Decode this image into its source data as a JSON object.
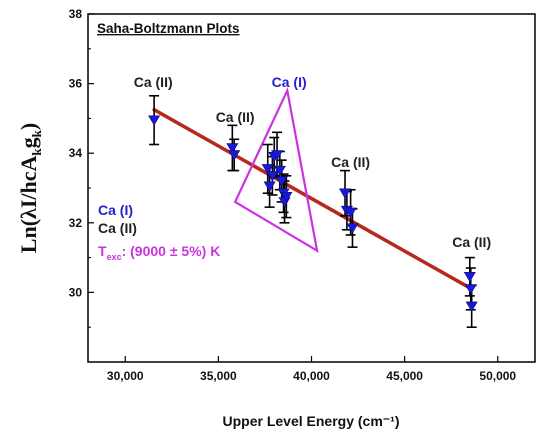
{
  "chart_data": {
    "type": "scatter",
    "title": "Saha-Boltzmann Plots",
    "xlabel": "Upper Level Energy (cm⁻¹)",
    "ylabel_parts": {
      "a": "Ln(λI/hcA",
      "b": "k",
      "c": "g",
      "d": "k",
      "e": ")"
    },
    "xlim": [
      28000,
      52000
    ],
    "ylim": [
      28,
      38
    ],
    "xticks": [
      30000,
      35000,
      40000,
      45000,
      50000
    ],
    "xtick_labels": [
      "30,000",
      "35,000",
      "40,000",
      "45,000",
      "50,000"
    ],
    "yticks": [
      30,
      32,
      34,
      36,
      38
    ],
    "ytick_labels": [
      "30",
      "32",
      "34",
      "36",
      "38"
    ],
    "grid": false,
    "legend": {
      "line1": "Ca (I)",
      "line2": "Ca (II)",
      "texc_main": "T",
      "texc_sub": "exc",
      "texc_value": ": (9000 ± 5%) K"
    },
    "series": [
      {
        "points": [
          {
            "x": 31550,
            "y": 34.95,
            "err": 0.7
          },
          {
            "x": 35750,
            "y": 34.15,
            "err": 0.65
          },
          {
            "x": 35850,
            "y": 33.95,
            "err": 0.45
          },
          {
            "x": 37650,
            "y": 33.55,
            "err": 0.7
          },
          {
            "x": 37750,
            "y": 33.05,
            "err": 0.6
          },
          {
            "x": 37900,
            "y": 33.35,
            "err": 0.55
          },
          {
            "x": 38000,
            "y": 33.9,
            "err": 0.55
          },
          {
            "x": 38150,
            "y": 33.95,
            "err": 0.65
          },
          {
            "x": 38300,
            "y": 33.5,
            "err": 0.55
          },
          {
            "x": 38400,
            "y": 33.2,
            "err": 0.6
          },
          {
            "x": 38500,
            "y": 32.85,
            "err": 0.55
          },
          {
            "x": 38550,
            "y": 32.6,
            "err": 0.6
          },
          {
            "x": 38650,
            "y": 32.75,
            "err": 0.6
          },
          {
            "x": 41800,
            "y": 32.85,
            "err": 0.65
          },
          {
            "x": 41900,
            "y": 32.35,
            "err": 0.55
          },
          {
            "x": 42100,
            "y": 32.3,
            "err": 0.65
          },
          {
            "x": 42200,
            "y": 31.85,
            "err": 0.55
          },
          {
            "x": 48500,
            "y": 30.45,
            "err": 0.55
          },
          {
            "x": 48550,
            "y": 30.1,
            "err": 0.6
          },
          {
            "x": 48600,
            "y": 29.6,
            "err": 0.6
          }
        ]
      }
    ],
    "fit_line": {
      "x": [
        31550,
        48600
      ],
      "y": [
        35.25,
        30.1
      ]
    },
    "triangle": {
      "x": [
        38700,
        35900,
        40300
      ],
      "y": [
        35.8,
        32.6,
        31.2
      ]
    },
    "annotations": [
      {
        "text": "Ca (II)",
        "x": 31500,
        "y": 35.9,
        "kind": "ion2"
      },
      {
        "text": "Ca (I)",
        "x": 38800,
        "y": 35.9,
        "kind": "ion1"
      },
      {
        "text": "Ca (II)",
        "x": 35900,
        "y": 34.9,
        "kind": "ion2"
      },
      {
        "text": "Ca (II)",
        "x": 42100,
        "y": 33.6,
        "kind": "ion2"
      },
      {
        "text": "Ca (II)",
        "x": 48600,
        "y": 31.3,
        "kind": "ion2"
      }
    ],
    "colors": {
      "marker": "#1a1ad6",
      "fit_line": "#b52a1b",
      "triangle": "#cc33e0",
      "ion1": "#2323c8",
      "ion2": "#222222",
      "texc": "#cc33e0"
    }
  }
}
